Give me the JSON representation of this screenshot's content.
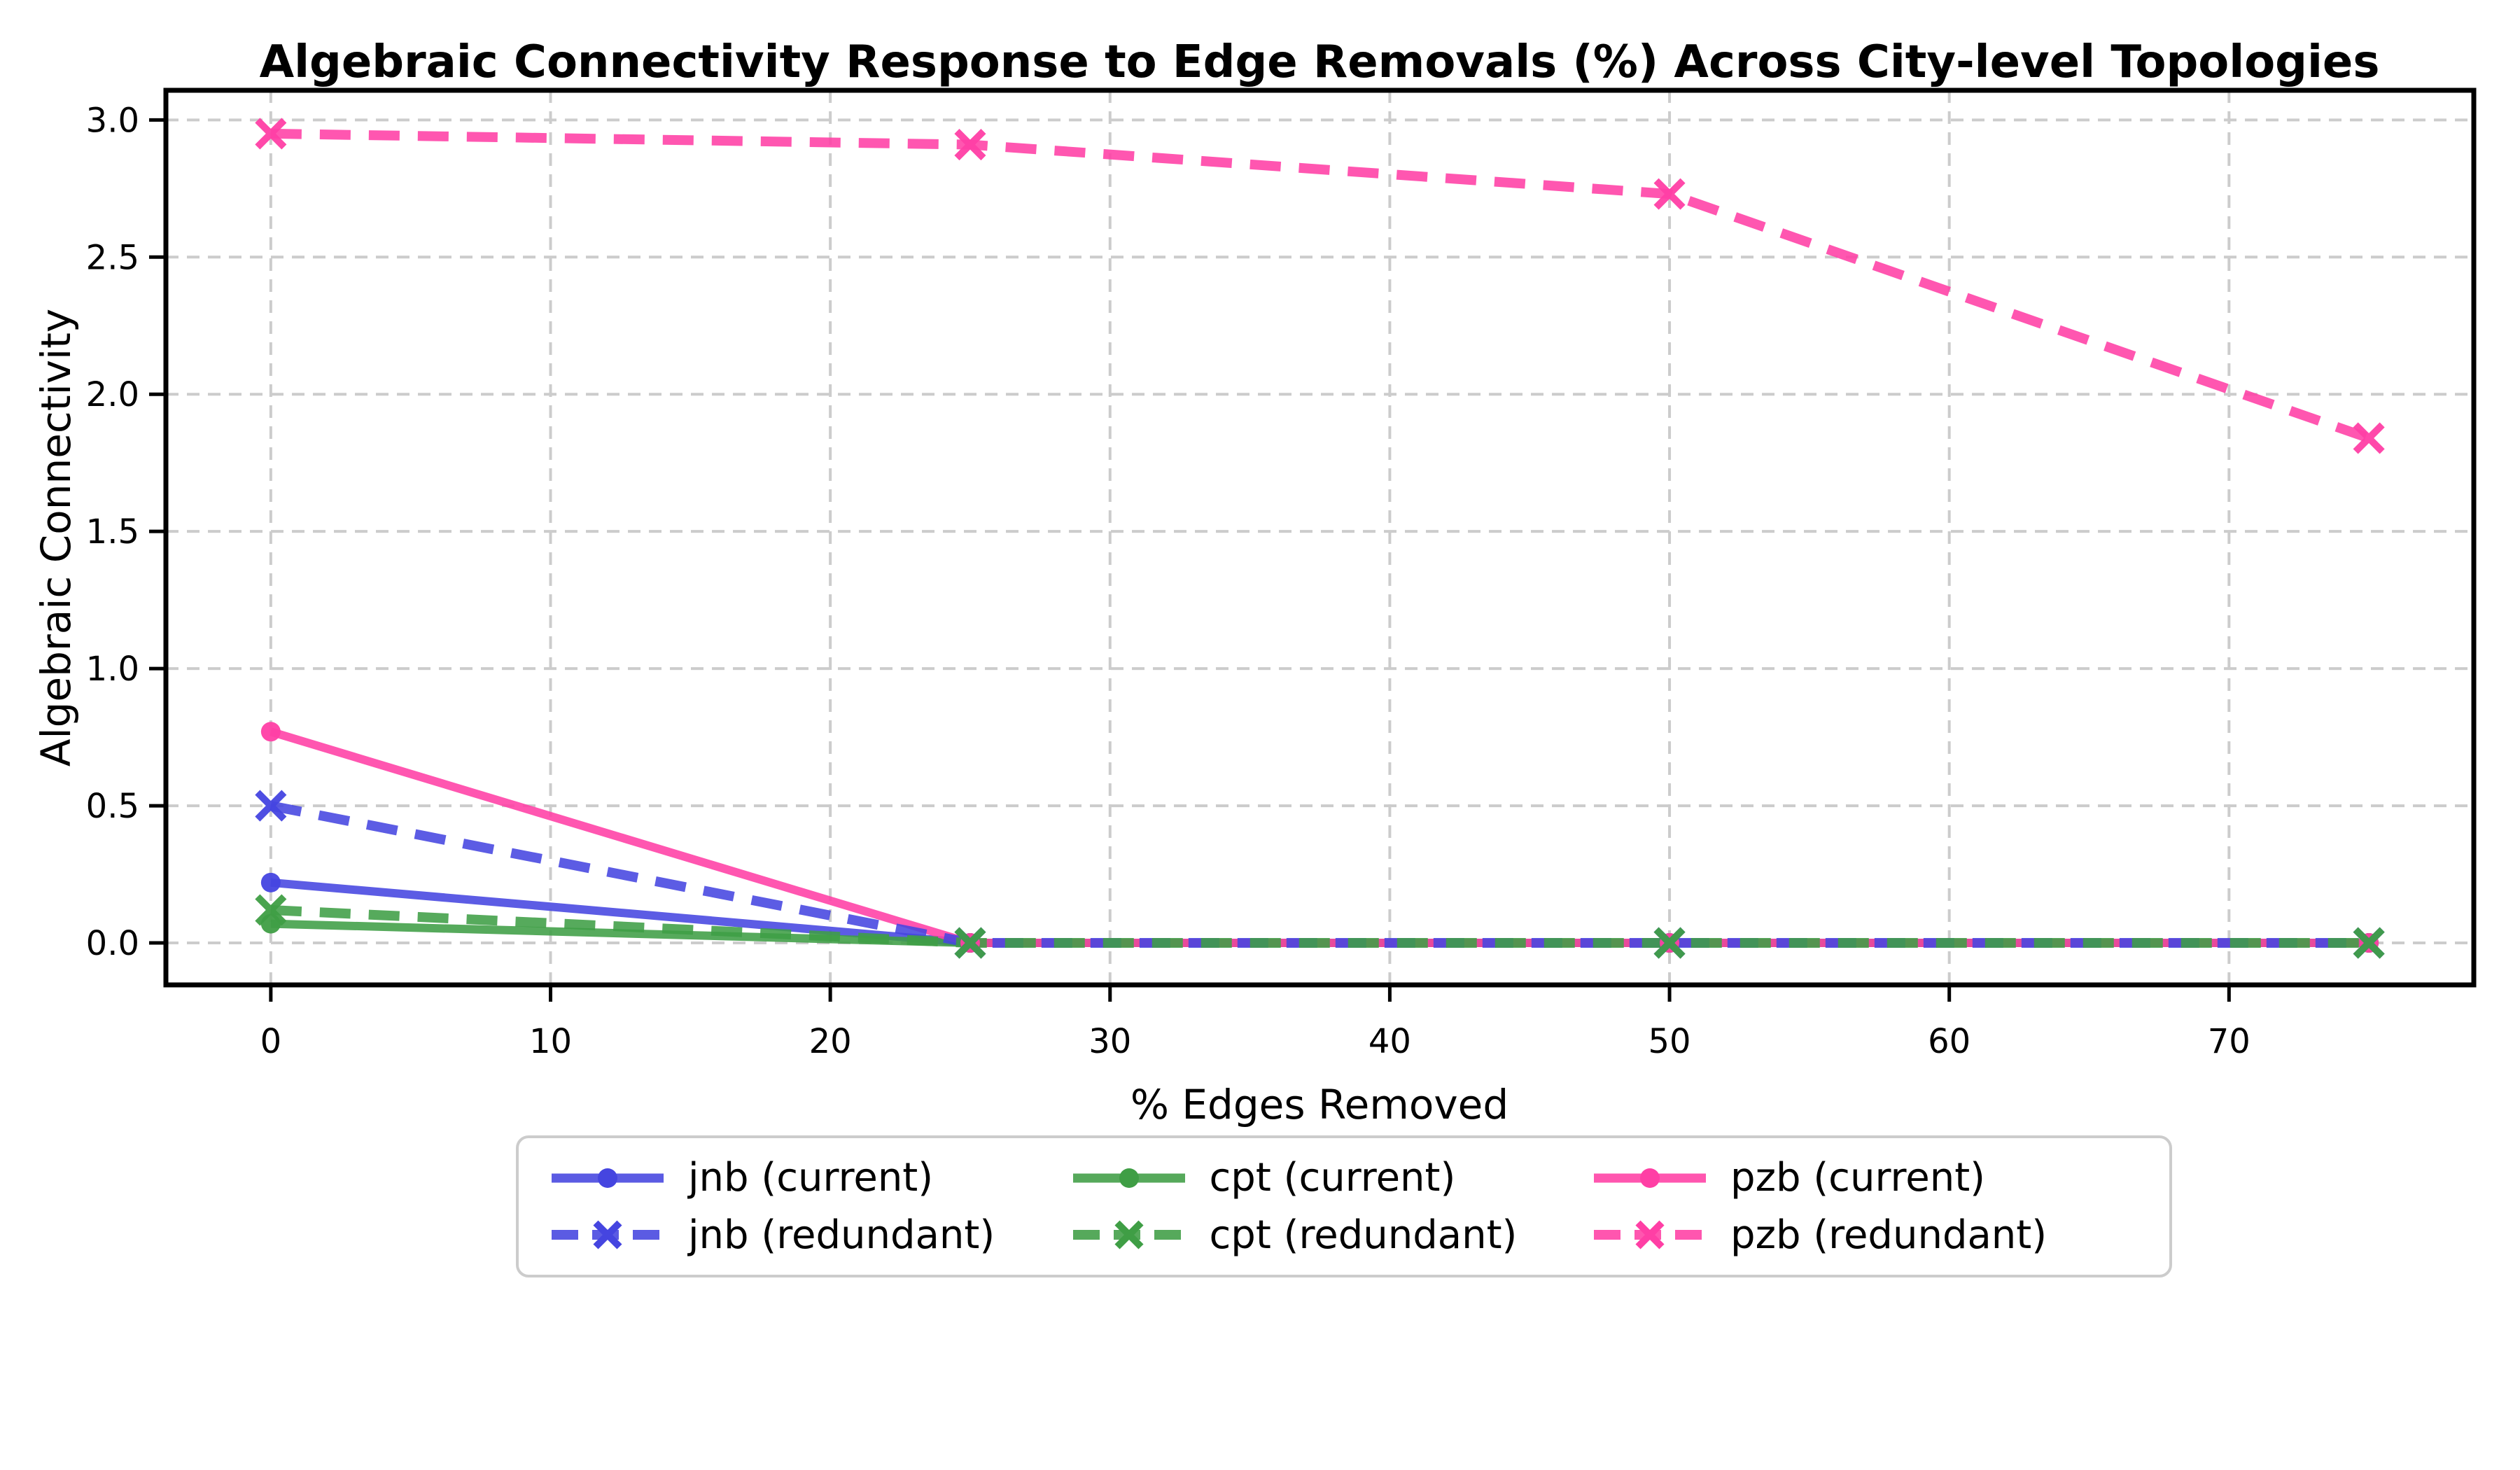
{
  "figure": {
    "title": "Algebraic Connectivity Response to Edge Removals (%) Across City-level Topologies",
    "xlabel": "% Edges Removed",
    "ylabel": "Algebraic Connectivity"
  },
  "chart_data": {
    "type": "line",
    "title": "Algebraic Connectivity Response to Edge Removals (%) Across City-level Topologies",
    "xlabel": "% Edges Removed",
    "ylabel": "Algebraic Connectivity",
    "x": [
      0,
      25,
      50,
      75
    ],
    "xticks": [
      "0",
      "10",
      "20",
      "30",
      "40",
      "50",
      "60",
      "70"
    ],
    "xtick_values": [
      0,
      10,
      20,
      30,
      40,
      50,
      60,
      70
    ],
    "yticks": [
      "0.0",
      "0.5",
      "1.0",
      "1.5",
      "2.0",
      "2.5",
      "3.0"
    ],
    "ytick_values": [
      0.0,
      0.5,
      1.0,
      1.5,
      2.0,
      2.5,
      3.0
    ],
    "xlim": [
      -3.75,
      78.75
    ],
    "ylim": [
      -0.153,
      3.108
    ],
    "grid": true,
    "grid_color": "#cccccc",
    "legend_position": "below-center",
    "series": [
      {
        "name": "jnb (current)",
        "city": "jnb",
        "variant": "current",
        "color": "#4545e0",
        "line_style": "solid",
        "marker": "circle",
        "values": [
          0.22,
          0.0,
          0.0,
          0.0
        ]
      },
      {
        "name": "jnb (redundant)",
        "city": "jnb",
        "variant": "redundant",
        "color": "#4545e0",
        "line_style": "dashed",
        "marker": "x",
        "values": [
          0.5,
          0.0,
          0.0,
          0.0
        ]
      },
      {
        "name": "cpt (current)",
        "city": "cpt",
        "variant": "current",
        "color": "#3f9e45",
        "line_style": "solid",
        "marker": "circle",
        "values": [
          0.07,
          0.0,
          0.0,
          0.0
        ]
      },
      {
        "name": "cpt (redundant)",
        "city": "cpt",
        "variant": "redundant",
        "color": "#3f9e45",
        "line_style": "dashed",
        "marker": "x",
        "values": [
          0.12,
          0.0,
          0.0,
          0.0
        ]
      },
      {
        "name": "pzb (current)",
        "city": "pzb",
        "variant": "current",
        "color": "#ff3fa5",
        "line_style": "solid",
        "marker": "circle",
        "values": [
          0.77,
          0.0,
          0.0,
          0.0
        ]
      },
      {
        "name": "pzb (redundant)",
        "city": "pzb",
        "variant": "redundant",
        "color": "#ff3fa5",
        "line_style": "dashed",
        "marker": "x",
        "values": [
          2.95,
          2.91,
          2.73,
          1.84
        ]
      }
    ],
    "legend_row_major_order": [
      0,
      2,
      4,
      1,
      3,
      5
    ]
  }
}
